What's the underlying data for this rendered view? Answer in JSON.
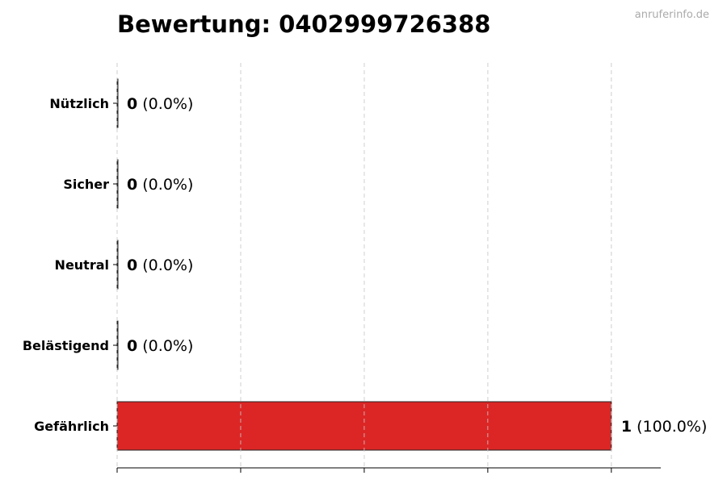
{
  "watermark": "anruferinfo.de",
  "chart_data": {
    "type": "bar",
    "orientation": "horizontal",
    "title": "Bewertung: 0402999726388",
    "categories": [
      "Nützlich",
      "Sicher",
      "Neutral",
      "Belästigend",
      "Gefährlich"
    ],
    "values": [
      0,
      0,
      0,
      0,
      1
    ],
    "percent_labels": [
      "(0.0%)",
      "(0.0%)",
      "(0.0%)",
      "(0.0%)",
      "(100.0%)"
    ],
    "colors": [
      "#888888",
      "#888888",
      "#888888",
      "#888888",
      "#dc2626"
    ],
    "xlim": [
      0,
      1.1
    ],
    "xticks": [
      0,
      0.25,
      0.5,
      0.75,
      1.0
    ],
    "xtick_labels_shown": false,
    "grid": "vertical dashed",
    "xlabel": "",
    "ylabel": ""
  }
}
